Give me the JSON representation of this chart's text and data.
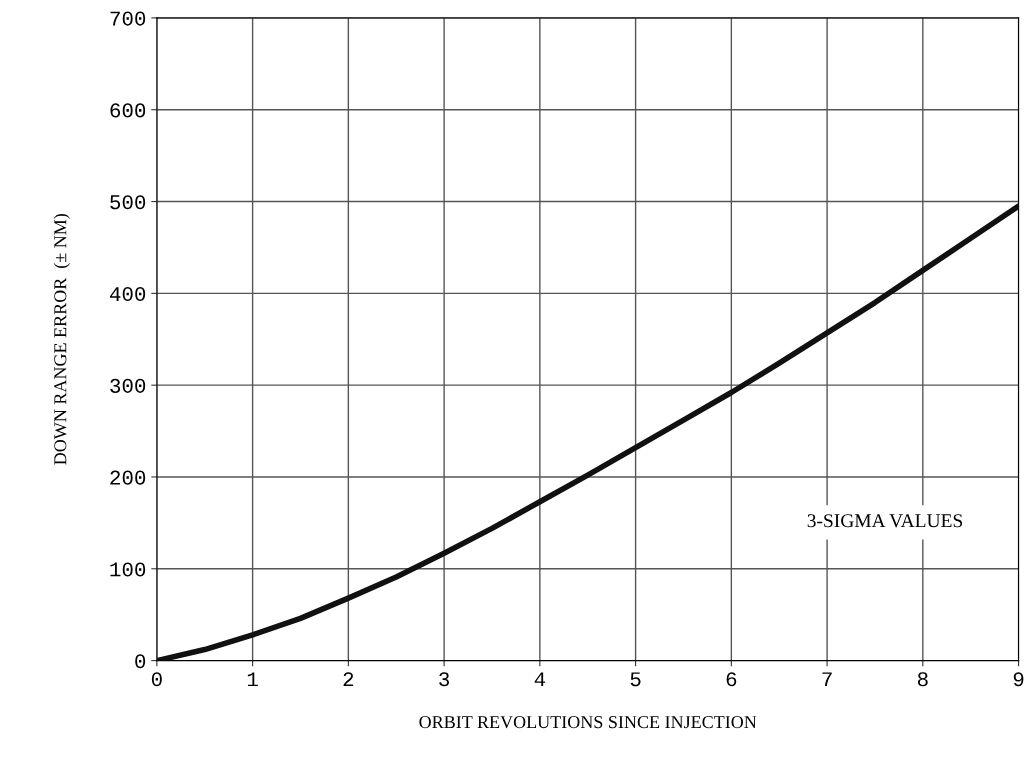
{
  "chart_data": {
    "type": "line",
    "xlabel": "ORBIT REVOLUTIONS SINCE INJECTION",
    "ylabel": "DOWN RANGE ERROR  (± NM)",
    "series": [
      {
        "color": "#111111",
        "x": [
          0,
          0.5,
          1,
          1.5,
          2,
          2.5,
          3,
          3.5,
          4,
          4.5,
          5,
          5.5,
          6,
          6.5,
          7,
          7.5,
          8,
          8.5,
          9
        ],
        "values": [
          0,
          12,
          28,
          46,
          68,
          91,
          117,
          144,
          173,
          202,
          232,
          262,
          292,
          324,
          357,
          390,
          425,
          460,
          495
        ]
      }
    ],
    "xlim": [
      0,
      9
    ],
    "xticks": [
      0,
      1,
      2,
      3,
      4,
      5,
      6,
      7,
      8,
      9
    ],
    "ylim": [
      0,
      700
    ],
    "yticks": [
      0,
      100,
      200,
      300,
      400,
      500,
      600,
      700
    ],
    "grid": true,
    "marker": "none",
    "line_style": "solid",
    "annotations": [
      "3-SIGMA VALUES"
    ]
  }
}
